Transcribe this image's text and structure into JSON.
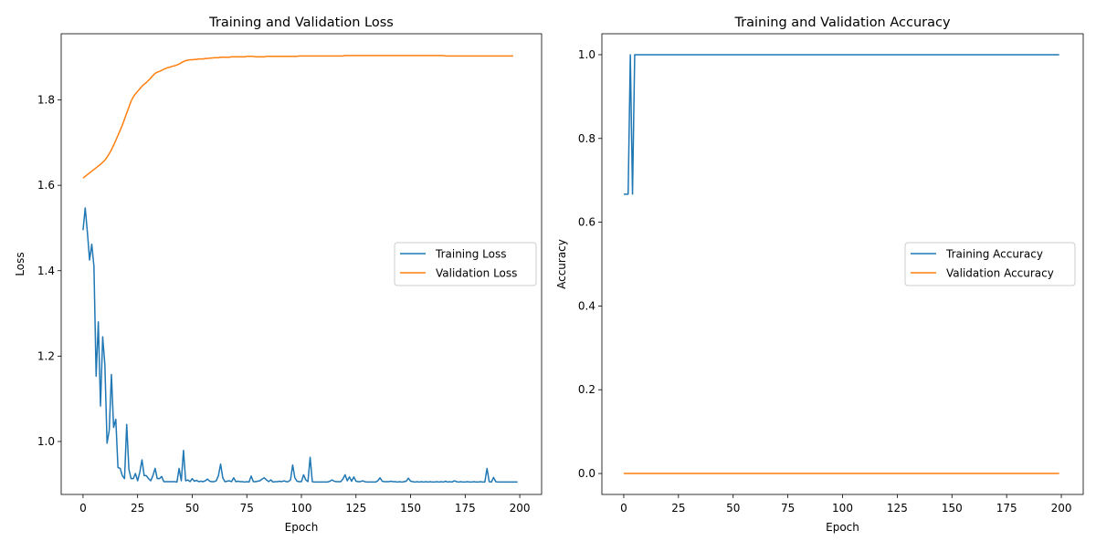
{
  "chart_data": [
    {
      "type": "line",
      "title": "Training and Validation Loss",
      "xlabel": "Epoch",
      "ylabel": "Loss",
      "xlim": [
        -10,
        210
      ],
      "ylim": [
        0.876,
        1.955
      ],
      "xticks": [
        0,
        25,
        50,
        75,
        100,
        125,
        150,
        175,
        200
      ],
      "xtick_labels": [
        "0",
        "25",
        "50",
        "75",
        "100",
        "125",
        "150",
        "175",
        "200"
      ],
      "yticks": [
        1.0,
        1.2,
        1.4,
        1.6,
        1.8
      ],
      "ytick_labels": [
        "1.0",
        "1.2",
        "1.4",
        "1.6",
        "1.8"
      ],
      "grid": false,
      "legend": "center-right",
      "series": [
        {
          "name": "Training Loss",
          "color": "#1f77b4",
          "values": [
            1.495,
            1.547,
            1.49,
            1.425,
            1.462,
            1.41,
            1.153,
            1.28,
            1.083,
            1.245,
            1.18,
            0.996,
            1.026,
            1.157,
            1.033,
            1.052,
            0.939,
            0.937,
            0.92,
            0.913,
            1.04,
            0.935,
            0.913,
            0.913,
            0.925,
            0.908,
            0.928,
            0.957,
            0.92,
            0.92,
            0.913,
            0.908,
            0.92,
            0.937,
            0.913,
            0.913,
            0.918,
            0.906,
            0.906,
            0.906,
            0.906,
            0.906,
            0.906,
            0.905,
            0.937,
            0.908,
            0.979,
            0.908,
            0.91,
            0.906,
            0.913,
            0.907,
            0.909,
            0.906,
            0.907,
            0.906,
            0.908,
            0.912,
            0.907,
            0.906,
            0.906,
            0.908,
            0.92,
            0.947,
            0.915,
            0.906,
            0.907,
            0.908,
            0.906,
            0.915,
            0.906,
            0.907,
            0.906,
            0.906,
            0.905,
            0.906,
            0.905,
            0.919,
            0.906,
            0.906,
            0.907,
            0.908,
            0.912,
            0.915,
            0.91,
            0.906,
            0.91,
            0.905,
            0.906,
            0.906,
            0.907,
            0.906,
            0.908,
            0.906,
            0.906,
            0.91,
            0.945,
            0.915,
            0.907,
            0.906,
            0.906,
            0.922,
            0.91,
            0.906,
            0.963,
            0.906,
            0.905,
            0.905,
            0.905,
            0.905,
            0.905,
            0.905,
            0.905,
            0.907,
            0.91,
            0.907,
            0.906,
            0.906,
            0.906,
            0.912,
            0.922,
            0.908,
            0.917,
            0.907,
            0.917,
            0.907,
            0.906,
            0.906,
            0.908,
            0.906,
            0.905,
            0.905,
            0.905,
            0.905,
            0.905,
            0.908,
            0.915,
            0.907,
            0.906,
            0.906,
            0.906,
            0.907,
            0.906,
            0.906,
            0.905,
            0.906,
            0.905,
            0.906,
            0.907,
            0.914,
            0.907,
            0.906,
            0.905,
            0.906,
            0.905,
            0.906,
            0.905,
            0.906,
            0.905,
            0.906,
            0.905,
            0.905,
            0.906,
            0.905,
            0.906,
            0.905,
            0.907,
            0.905,
            0.906,
            0.905,
            0.908,
            0.906,
            0.905,
            0.906,
            0.905,
            0.905,
            0.906,
            0.905,
            0.905,
            0.906,
            0.905,
            0.905,
            0.906,
            0.905,
            0.905,
            0.937,
            0.906,
            0.905,
            0.916,
            0.906,
            0.905,
            0.905,
            0.905,
            0.905,
            0.905,
            0.905,
            0.905,
            0.905,
            0.905,
            0.905
          ]
        },
        {
          "name": "Validation Loss",
          "color": "#ff7f0e",
          "values": [
            1.617,
            1.621,
            1.625,
            1.629,
            1.633,
            1.637,
            1.641,
            1.645,
            1.649,
            1.654,
            1.659,
            1.666,
            1.674,
            1.683,
            1.694,
            1.705,
            1.717,
            1.729,
            1.741,
            1.755,
            1.769,
            1.783,
            1.797,
            1.807,
            1.814,
            1.82,
            1.826,
            1.832,
            1.837,
            1.841,
            1.846,
            1.851,
            1.857,
            1.862,
            1.865,
            1.867,
            1.869,
            1.872,
            1.874,
            1.876,
            1.877,
            1.879,
            1.88,
            1.882,
            1.884,
            1.887,
            1.89,
            1.892,
            1.893,
            1.894,
            1.894,
            1.895,
            1.895,
            1.896,
            1.896,
            1.896,
            1.897,
            1.897,
            1.898,
            1.898,
            1.899,
            1.899,
            1.899,
            1.9,
            1.9,
            1.9,
            1.9,
            1.9,
            1.901,
            1.901,
            1.901,
            1.901,
            1.901,
            1.901,
            1.901,
            1.902,
            1.902,
            1.902,
            1.902,
            1.901,
            1.901,
            1.901,
            1.901,
            1.901,
            1.902,
            1.902,
            1.902,
            1.902,
            1.902,
            1.902,
            1.902,
            1.902,
            1.902,
            1.902,
            1.902,
            1.902,
            1.902,
            1.902,
            1.902,
            1.903,
            1.903,
            1.903,
            1.903,
            1.903,
            1.903,
            1.903,
            1.903,
            1.903,
            1.903,
            1.903,
            1.903,
            1.903,
            1.903,
            1.903,
            1.903,
            1.903,
            1.903,
            1.903,
            1.903,
            1.903,
            1.904,
            1.904,
            1.904,
            1.904,
            1.904,
            1.904,
            1.904,
            1.904,
            1.904,
            1.904,
            1.904,
            1.904,
            1.904,
            1.904,
            1.904,
            1.904,
            1.904,
            1.904,
            1.904,
            1.904,
            1.904,
            1.904,
            1.904,
            1.904,
            1.904,
            1.904,
            1.904,
            1.904,
            1.904,
            1.904,
            1.904,
            1.904,
            1.904,
            1.904,
            1.904,
            1.904,
            1.904,
            1.904,
            1.904,
            1.904,
            1.904,
            1.904,
            1.904,
            1.904,
            1.904,
            1.904,
            1.903,
            1.903,
            1.903,
            1.903,
            1.903,
            1.903,
            1.903,
            1.903,
            1.903,
            1.903,
            1.903,
            1.903,
            1.903,
            1.903,
            1.903,
            1.903,
            1.903,
            1.903,
            1.903,
            1.903,
            1.903,
            1.903,
            1.903,
            1.903,
            1.903,
            1.903,
            1.903,
            1.903,
            1.903,
            1.903,
            1.903,
            1.903
          ]
        }
      ]
    },
    {
      "type": "line",
      "title": "Training and Validation Accuracy",
      "xlabel": "Epoch",
      "ylabel": "Accuracy",
      "xlim": [
        -10,
        210
      ],
      "ylim": [
        -0.05,
        1.05
      ],
      "xticks": [
        0,
        25,
        50,
        75,
        100,
        125,
        150,
        175,
        200
      ],
      "xtick_labels": [
        "0",
        "25",
        "50",
        "75",
        "100",
        "125",
        "150",
        "175",
        "200"
      ],
      "yticks": [
        0.0,
        0.2,
        0.4,
        0.6,
        0.8,
        1.0
      ],
      "ytick_labels": [
        "0.0",
        "0.2",
        "0.4",
        "0.6",
        "0.8",
        "1.0"
      ],
      "grid": false,
      "legend": "center-right",
      "series": [
        {
          "name": "Training Accuracy",
          "color": "#1f77b4",
          "values_sparse": {
            "0": 0.667,
            "1": 0.667,
            "2": 0.667,
            "3": 1.0,
            "4": 0.667,
            "5-199": 1.0
          }
        },
        {
          "name": "Validation Accuracy",
          "color": "#ff7f0e",
          "values_sparse": {
            "0-199": 0.0
          }
        }
      ]
    }
  ]
}
